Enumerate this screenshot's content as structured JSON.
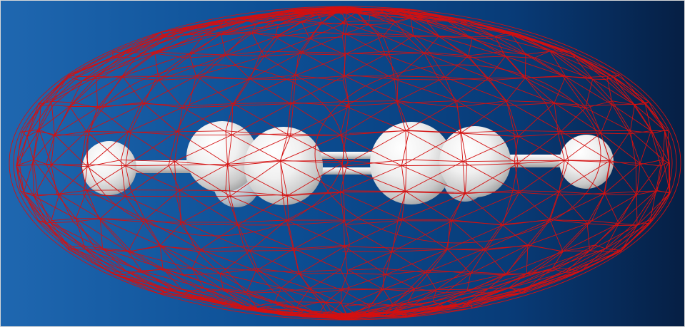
{
  "viewer": {
    "background_colors": [
      "#1f67b0",
      "#0c4f95",
      "#083b77",
      "#061f44"
    ],
    "mesh_color": "#d41010",
    "atom_color": "#ffffff",
    "bond_color": "#dcdcdc"
  },
  "molecule": {
    "atoms": [
      {
        "name": "atom-hydrogen-left",
        "element": "H"
      },
      {
        "name": "atom-carbon-1",
        "element": "C"
      },
      {
        "name": "atom-carbon-2",
        "element": "C"
      },
      {
        "name": "atom-carbon-3",
        "element": "C"
      },
      {
        "name": "atom-carbon-4",
        "element": "C"
      },
      {
        "name": "atom-hydrogen-right",
        "element": "H"
      }
    ]
  },
  "surface": {
    "type": "wireframe-isosurface"
  }
}
